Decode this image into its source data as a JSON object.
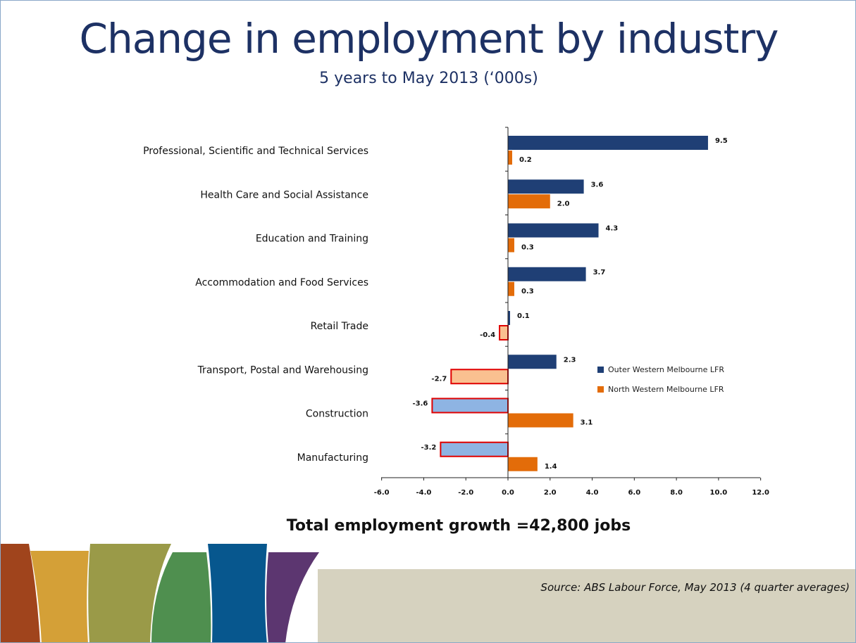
{
  "title": "Change in employment by industry",
  "subtitle": "5 years to May 2013 (‘000s)",
  "total_text": "Total employment growth =42,800 jobs",
  "source_text": "Source: ABS Labour Force, May 2013 (4 quarter averages)",
  "colors": {
    "outer": "#1f3f75",
    "north": "#e36c09",
    "outer_negative_fill": "#8eb4e3",
    "north_negative_fill": "#fac090",
    "negative_border": "#e00000",
    "decor": [
      "#a0441c",
      "#d4a037",
      "#9a9a48",
      "#4f8f4f",
      "#07578e",
      "#5c3670"
    ]
  },
  "chart_data": {
    "type": "bar",
    "orientation": "horizontal",
    "categories": [
      "Professional, Scientific and Technical Services",
      "Health Care and Social Assistance",
      "Education and Training",
      "Accommodation and Food Services",
      "Retail Trade",
      "Transport, Postal and Warehousing",
      "Construction",
      "Manufacturing"
    ],
    "series": [
      {
        "name": "Outer Western Melbourne LFR",
        "values": [
          9.5,
          3.6,
          4.3,
          3.7,
          0.1,
          2.3,
          -3.6,
          -3.2
        ],
        "labels": [
          "9.5",
          "3.6",
          "4.3",
          "3.7",
          "0.1",
          "2.3",
          "-3.6",
          "-3.2"
        ]
      },
      {
        "name": "North Western Melbourne LFR",
        "values": [
          0.2,
          2.0,
          0.3,
          0.3,
          -0.4,
          -2.7,
          3.1,
          1.4
        ],
        "labels": [
          "0.2",
          "2.0",
          "0.3",
          "0.3",
          "-0.4",
          "-2.7",
          "3.1",
          "1.4"
        ]
      }
    ],
    "xlim": [
      -6.0,
      12.0
    ],
    "ticks": [
      "-6.0",
      "-4.0",
      "-2.0",
      "0.0",
      "2.0",
      "4.0",
      "6.0",
      "8.0",
      "10.0",
      "12.0"
    ],
    "tick_values": [
      -6,
      -4,
      -2,
      0,
      2,
      4,
      6,
      8,
      10,
      12
    ],
    "legend_position": "right",
    "grid": false
  }
}
